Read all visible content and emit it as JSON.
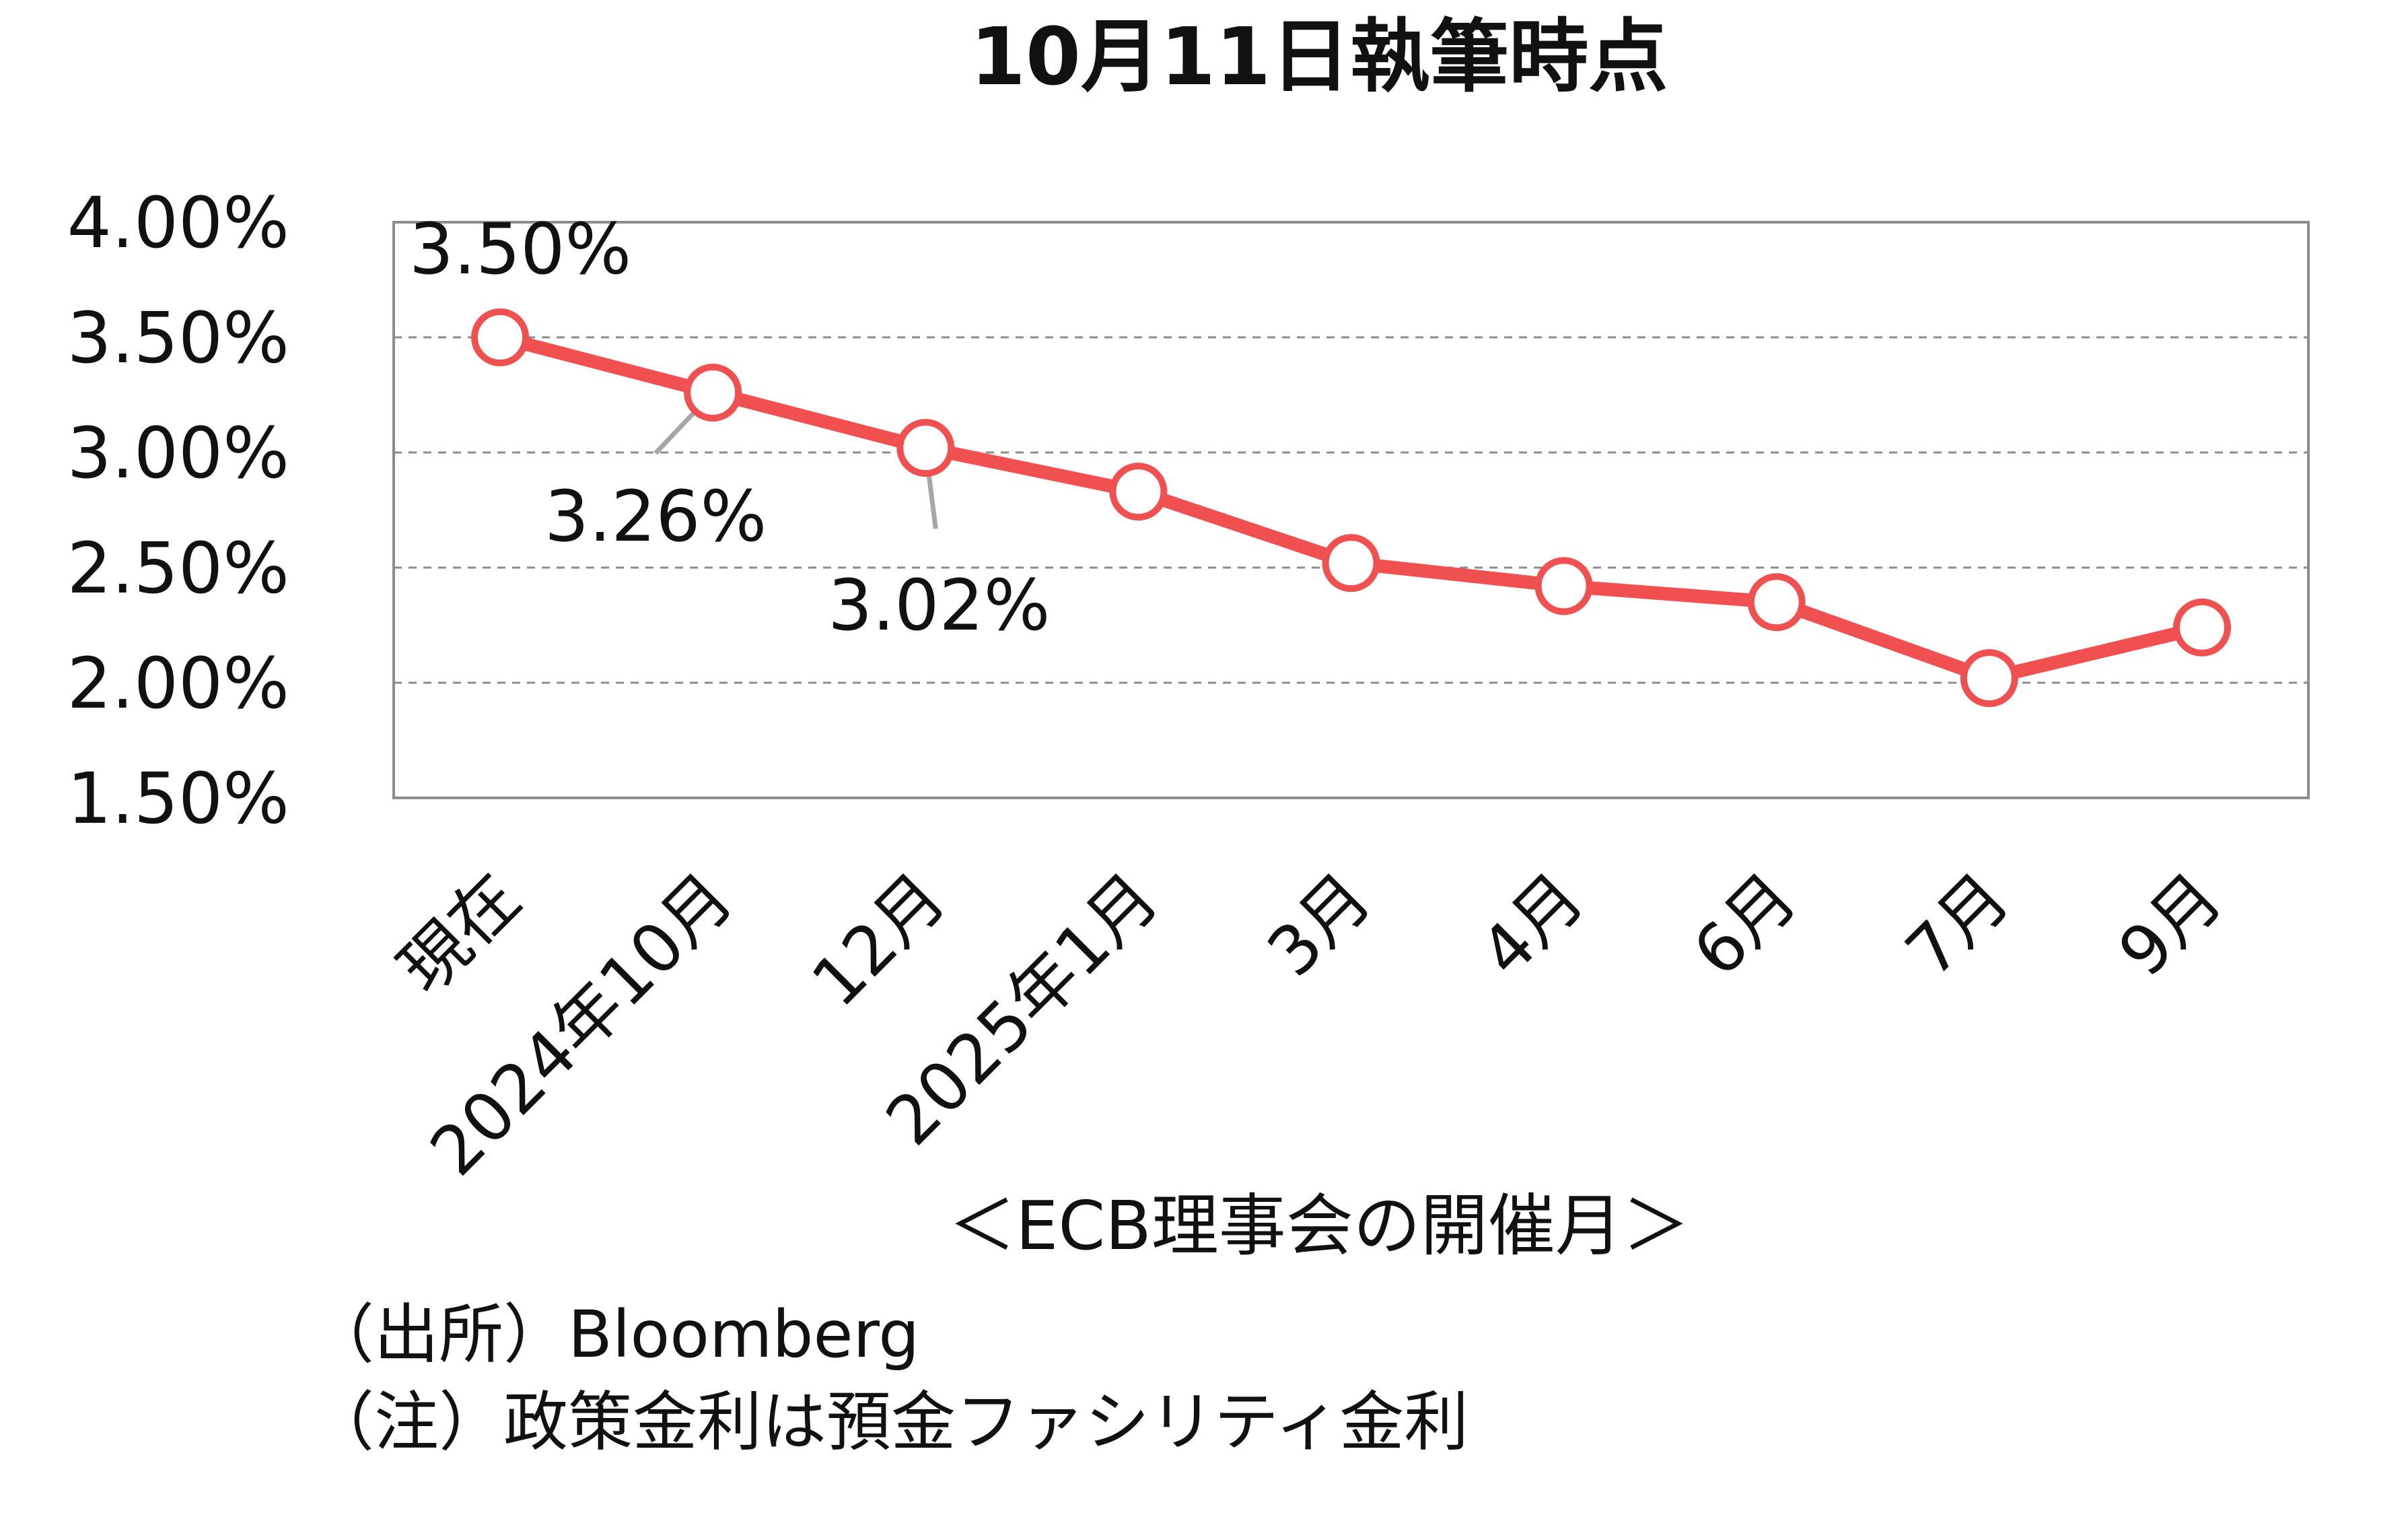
{
  "chart_data": {
    "type": "line",
    "title": "10月11日執筆時点",
    "xlabel": "＜ECB理事会の開催月＞",
    "ylabel": "",
    "categories": [
      "現在",
      "2024年10月",
      "12月",
      "2025年1月",
      "3月",
      "4月",
      "6月",
      "7月",
      "9月"
    ],
    "series": [
      {
        "values": [
          3.5,
          3.26,
          3.02,
          2.83,
          2.52,
          2.42,
          2.35,
          2.02,
          2.24
        ],
        "color": "#f05050"
      }
    ],
    "ylim": [
      1.5,
      4.0
    ],
    "yticks": [
      "4.00%",
      "3.50%",
      "3.00%",
      "2.50%",
      "2.00%",
      "1.50%"
    ],
    "ytick_values": [
      4.0,
      3.5,
      3.0,
      2.5,
      2.0,
      1.5
    ],
    "grid": true,
    "data_labels": [
      {
        "index": 0,
        "text": "3.50%"
      },
      {
        "index": 1,
        "text": "3.26%"
      },
      {
        "index": 2,
        "text": "3.02%"
      }
    ]
  },
  "notes": {
    "source": "（出所）Bloomberg",
    "note": "（注）政策金利は預金ファシリティ金利"
  }
}
